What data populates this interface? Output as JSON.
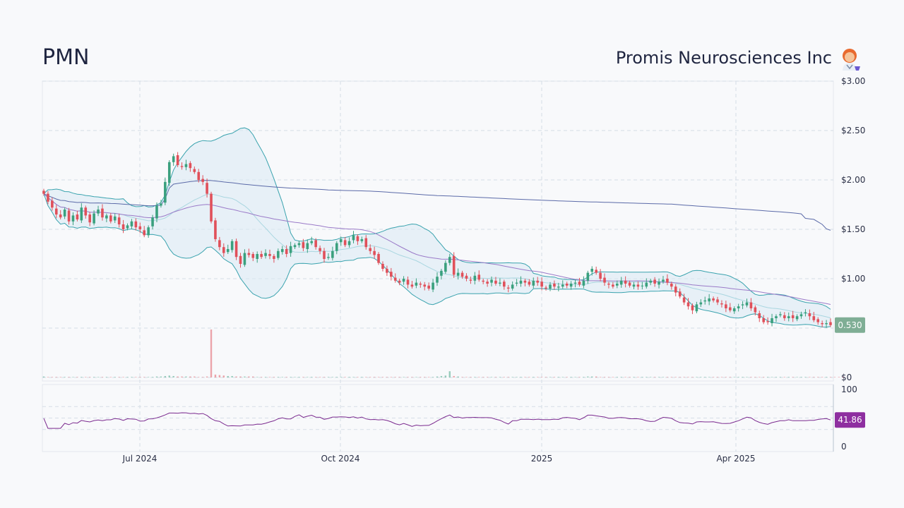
{
  "header": {
    "ticker": "PMN",
    "company": "Promis Neurosciences Inc"
  },
  "colors": {
    "up": "#3aa07e",
    "down": "#e0505a",
    "bollinger_line": "#3aa3ae",
    "bollinger_fill": "#d8eaf4",
    "ma_long": "#5b6aa8",
    "ma_mid": "#9a7ac8",
    "ma_short": "#a9d6e0",
    "rsi_line": "#7b2a8f",
    "rsi_tag": "#8e2fa0",
    "price_tag": "#7fae95",
    "grid": "#d5dde6"
  },
  "chart_data": {
    "type": "candlestick",
    "x_tick_labels": [
      "Jul 2024",
      "Oct 2024",
      "2025",
      "Apr 2025"
    ],
    "price_axis": {
      "tick_labels": [
        "$0",
        "$0.50",
        "$1.00",
        "$1.50",
        "$2.00",
        "$2.50",
        "$3.00"
      ],
      "ylim": [
        0,
        3.0
      ]
    },
    "last_price_label": "0.530",
    "last_price": 0.53,
    "rsi_axis": {
      "tick_labels": [
        "0",
        "100"
      ],
      "ylim": [
        0,
        100
      ],
      "guides": [
        30,
        50,
        70
      ]
    },
    "last_rsi_label": "41.86",
    "last_rsi": 41.86,
    "close_series": [
      1.86,
      1.78,
      1.72,
      1.65,
      1.62,
      1.7,
      1.58,
      1.64,
      1.6,
      1.72,
      1.64,
      1.57,
      1.66,
      1.7,
      1.62,
      1.64,
      1.58,
      1.63,
      1.55,
      1.5,
      1.54,
      1.58,
      1.52,
      1.5,
      1.44,
      1.52,
      1.62,
      1.74,
      1.76,
      1.98,
      2.18,
      2.24,
      2.15,
      2.13,
      2.16,
      2.12,
      2.08,
      2.0,
      1.98,
      1.86,
      1.58,
      1.4,
      1.32,
      1.26,
      1.3,
      1.38,
      1.22,
      1.15,
      1.26,
      1.24,
      1.21,
      1.25,
      1.22,
      1.26,
      1.23,
      1.2,
      1.28,
      1.3,
      1.25,
      1.33,
      1.34,
      1.36,
      1.31,
      1.36,
      1.38,
      1.32,
      1.28,
      1.2,
      1.22,
      1.28,
      1.36,
      1.4,
      1.34,
      1.38,
      1.44,
      1.38,
      1.4,
      1.32,
      1.28,
      1.24,
      1.16,
      1.1,
      1.06,
      1.02,
      0.98,
      0.96,
      1.0,
      0.94,
      0.92,
      0.96,
      0.94,
      0.92,
      0.9,
      0.96,
      1.02,
      1.08,
      1.16,
      1.22,
      1.04,
      1.06,
      1.02,
      1.0,
      0.98,
      1.03,
      0.99,
      0.97,
      0.95,
      0.99,
      0.95,
      0.96,
      0.92,
      0.9,
      0.94,
      0.96,
      0.98,
      0.96,
      0.94,
      0.98,
      0.96,
      0.92,
      0.9,
      0.94,
      0.92,
      0.92,
      0.94,
      0.93,
      0.95,
      0.96,
      0.94,
      0.98,
      1.06,
      1.1,
      1.06,
      1.0,
      0.96,
      0.94,
      0.92,
      0.95,
      0.98,
      0.95,
      0.93,
      0.94,
      0.92,
      0.93,
      0.96,
      0.98,
      0.95,
      0.97,
      0.99,
      0.96,
      0.92,
      0.86,
      0.82,
      0.76,
      0.72,
      0.68,
      0.74,
      0.76,
      0.78,
      0.8,
      0.78,
      0.76,
      0.74,
      0.7,
      0.68,
      0.7,
      0.72,
      0.74,
      0.76,
      0.7,
      0.66,
      0.6,
      0.56,
      0.56,
      0.6,
      0.62,
      0.64,
      0.6,
      0.62,
      0.6,
      0.62,
      0.64,
      0.66,
      0.62,
      0.58,
      0.56,
      0.54,
      0.55,
      0.53
    ],
    "volume_series": [
      2,
      1,
      1,
      1,
      1,
      1,
      1,
      1,
      1,
      1,
      1,
      1,
      1,
      1,
      1,
      1,
      1,
      1,
      1,
      1,
      1,
      1,
      1,
      1,
      1,
      1,
      1,
      2,
      2,
      3,
      4,
      3,
      2,
      2,
      2,
      2,
      2,
      1,
      1,
      2,
      100,
      6,
      5,
      4,
      3,
      3,
      2,
      2,
      2,
      2,
      2,
      1,
      1,
      1,
      1,
      1,
      1,
      1,
      1,
      1,
      1,
      1,
      1,
      1,
      1,
      1,
      1,
      1,
      1,
      1,
      1,
      1,
      1,
      1,
      1,
      1,
      1,
      1,
      1,
      1,
      1,
      1,
      1,
      1,
      1,
      1,
      1,
      1,
      1,
      1,
      1,
      1,
      1,
      1,
      2,
      3,
      4,
      13,
      3,
      2,
      1,
      1,
      1,
      1,
      1,
      1,
      1,
      1,
      1,
      1,
      1,
      1,
      1,
      1,
      1,
      1,
      1,
      1,
      1,
      1,
      1,
      1,
      1,
      1,
      1,
      1,
      1,
      1,
      1,
      1,
      2,
      2,
      2,
      1,
      1,
      1,
      1,
      1,
      1,
      1,
      1,
      1,
      1,
      1,
      1,
      1,
      1,
      1,
      1,
      1,
      1,
      1,
      1,
      1,
      1,
      1,
      1,
      1,
      1,
      1,
      1,
      1,
      1,
      1,
      1,
      1,
      1,
      1,
      1,
      1,
      1,
      1,
      1,
      1,
      1,
      1,
      1,
      1,
      1,
      1,
      1,
      1,
      1,
      1,
      1,
      1,
      1,
      1,
      1,
      1,
      1,
      1
    ]
  }
}
